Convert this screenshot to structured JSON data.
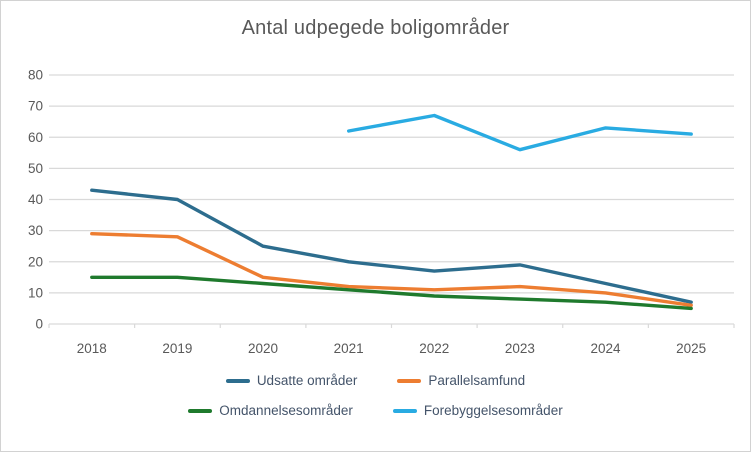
{
  "window": {
    "background": "#ffffff",
    "border_color": "#d2d2d2"
  },
  "chart_data": {
    "type": "line",
    "title": "Antal udpegede boligområder",
    "title_color": "#595959",
    "categories": [
      "2018",
      "2019",
      "2020",
      "2021",
      "2022",
      "2023",
      "2024",
      "2025"
    ],
    "series": [
      {
        "name": "Udsatte områder",
        "color": "#2d6d8e",
        "values": [
          43,
          40,
          25,
          20,
          17,
          19,
          13,
          7
        ]
      },
      {
        "name": "Parallelsamfund",
        "color": "#ed7d31",
        "values": [
          29,
          28,
          15,
          12,
          11,
          12,
          10,
          6
        ]
      },
      {
        "name": "Omdannelsesområder",
        "color": "#1f7a2d",
        "values": [
          15,
          15,
          13,
          11,
          9,
          8,
          7,
          5
        ]
      },
      {
        "name": "Forebyggelsesområder",
        "color": "#29abe2",
        "values": [
          null,
          null,
          null,
          62,
          67,
          56,
          63,
          61
        ]
      }
    ],
    "ylim": [
      0,
      80
    ],
    "yticks": [
      0,
      10,
      20,
      30,
      40,
      50,
      60,
      70,
      80
    ],
    "grid": true,
    "gridline_color": "#d9d9d9",
    "axis_label_color": "#595959",
    "legend_position": "bottom",
    "legend_text_color": "#44546a",
    "line_width": 3.4
  }
}
